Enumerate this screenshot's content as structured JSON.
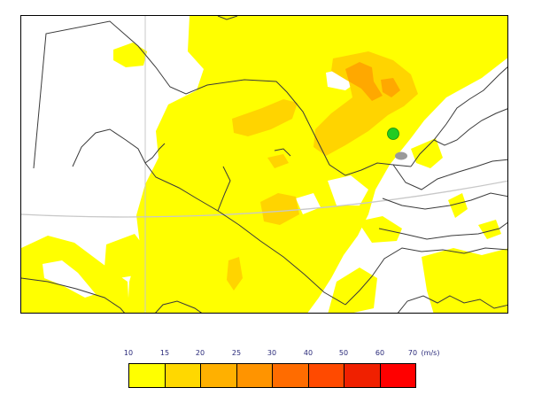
{
  "map": {
    "land_fill": "#ffffff",
    "border_color": "#3a3a3a",
    "graticule_color": "#c8c8c8",
    "markers": [
      {
        "name": "green-station-dot",
        "color": "#22cc22"
      },
      {
        "name": "grey-station-ellipse",
        "color": "#9a9a9a"
      }
    ]
  },
  "legend": {
    "tick_labels": [
      "10",
      "15",
      "20",
      "25",
      "30",
      "40",
      "50",
      "60",
      "70"
    ],
    "unit": "(m/s)",
    "colors": [
      "#ffff00",
      "#ffd800",
      "#ffb000",
      "#ff9400",
      "#ff6c00",
      "#ff4a00",
      "#f02000",
      "#ff0000"
    ]
  }
}
